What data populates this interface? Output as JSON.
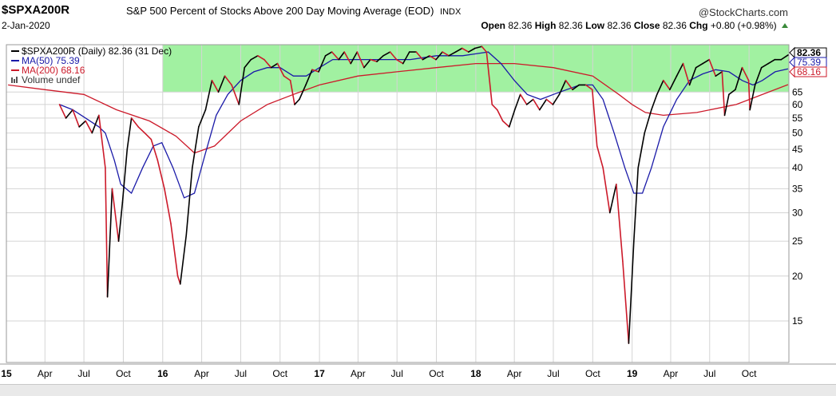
{
  "header": {
    "symbol": "$SPXA200R",
    "description": "S&P 500 Percent of Stocks Above 200 Day Moving Average (EOD)",
    "exchange": "INDX",
    "brand": "@StockCharts.com",
    "date": "2-Jan-2020",
    "open_label": "Open",
    "open": "82.36",
    "high_label": "High",
    "high": "82.36",
    "low_label": "Low",
    "low": "82.36",
    "close_label": "Close",
    "close": "82.36",
    "chg_label": "Chg",
    "chg": "+0.80 (+0.98%)"
  },
  "chart_data": {
    "type": "line",
    "y_scale": "log",
    "ylim": [
      11.5,
      88
    ],
    "x_range": [
      "2015-01-01",
      "2020-01-02"
    ],
    "grid": true,
    "legend_position": "top-left",
    "highlight_band": {
      "y": [
        65,
        88
      ],
      "color": "#90ee90"
    },
    "legend": [
      {
        "key": "price",
        "text": "$SPXA200R (Daily) 82.36 (31 Dec)",
        "color": "#000000"
      },
      {
        "key": "ma50",
        "text": "MA(50) 75.39",
        "color": "#1a1aa8"
      },
      {
        "key": "ma200",
        "text": "MA(200) 68.16",
        "color": "#cc1a2a"
      },
      {
        "key": "volume",
        "text": "Volume undef",
        "color": "#555555"
      }
    ],
    "right_labels": [
      {
        "value": 82.36,
        "text": "82.36",
        "color": "#000000",
        "bold": true
      },
      {
        "value": 75.39,
        "text": "75.39",
        "color": "#1a1aa8",
        "bold": false
      },
      {
        "value": 68.16,
        "text": "68.16",
        "color": "#cc1a2a",
        "bold": false
      }
    ],
    "y_ticks": [
      {
        "value": 15,
        "label": "15"
      },
      {
        "value": 20,
        "label": "20"
      },
      {
        "value": 25,
        "label": "25"
      },
      {
        "value": 30,
        "label": "30"
      },
      {
        "value": 35,
        "label": "35"
      },
      {
        "value": 40,
        "label": "40"
      },
      {
        "value": 45,
        "label": "45"
      },
      {
        "value": 50,
        "label": "50"
      },
      {
        "value": 55,
        "label": "55"
      },
      {
        "value": 60,
        "label": "60"
      },
      {
        "value": 65,
        "label": "65"
      }
    ],
    "x_ticks": [
      {
        "date": "2015-01-01",
        "label": "15",
        "bold": true
      },
      {
        "date": "2015-04-01",
        "label": "Apr"
      },
      {
        "date": "2015-07-01",
        "label": "Jul"
      },
      {
        "date": "2015-10-01",
        "label": "Oct"
      },
      {
        "date": "2016-01-01",
        "label": "16",
        "bold": true
      },
      {
        "date": "2016-04-01",
        "label": "Apr"
      },
      {
        "date": "2016-07-01",
        "label": "Jul"
      },
      {
        "date": "2016-10-01",
        "label": "Oct"
      },
      {
        "date": "2017-01-01",
        "label": "17",
        "bold": true
      },
      {
        "date": "2017-04-01",
        "label": "Apr"
      },
      {
        "date": "2017-07-01",
        "label": "Jul"
      },
      {
        "date": "2017-10-01",
        "label": "Oct"
      },
      {
        "date": "2018-01-01",
        "label": "18",
        "bold": true
      },
      {
        "date": "2018-04-01",
        "label": "Apr"
      },
      {
        "date": "2018-07-01",
        "label": "Jul"
      },
      {
        "date": "2018-10-01",
        "label": "Oct"
      },
      {
        "date": "2019-01-01",
        "label": "19",
        "bold": true
      },
      {
        "date": "2019-04-01",
        "label": "Apr"
      },
      {
        "date": "2019-07-01",
        "label": "Jul"
      },
      {
        "date": "2019-10-01",
        "label": "Oct"
      }
    ],
    "series": [
      {
        "key": "price",
        "name": "$SPXA200R",
        "color_up": "#000000",
        "color_down": "#cc1a2a",
        "x": [
          "2015-05-05",
          "2015-05-20",
          "2015-06-05",
          "2015-06-20",
          "2015-07-05",
          "2015-07-20",
          "2015-08-05",
          "2015-08-20",
          "2015-08-25",
          "2015-09-05",
          "2015-09-20",
          "2015-09-29",
          "2015-10-10",
          "2015-10-20",
          "2015-11-05",
          "2015-11-20",
          "2015-12-05",
          "2015-12-20",
          "2016-01-05",
          "2016-01-20",
          "2016-02-05",
          "2016-02-11",
          "2016-02-25",
          "2016-03-10",
          "2016-03-25",
          "2016-04-10",
          "2016-04-25",
          "2016-05-10",
          "2016-05-25",
          "2016-06-10",
          "2016-06-27",
          "2016-07-10",
          "2016-07-25",
          "2016-08-10",
          "2016-08-25",
          "2016-09-10",
          "2016-09-25",
          "2016-10-10",
          "2016-10-25",
          "2016-11-04",
          "2016-11-15",
          "2016-11-30",
          "2016-12-15",
          "2016-12-30",
          "2017-01-15",
          "2017-01-30",
          "2017-02-15",
          "2017-02-28",
          "2017-03-15",
          "2017-03-30",
          "2017-04-15",
          "2017-04-30",
          "2017-05-15",
          "2017-05-30",
          "2017-06-15",
          "2017-06-30",
          "2017-07-15",
          "2017-07-30",
          "2017-08-15",
          "2017-08-30",
          "2017-09-15",
          "2017-09-30",
          "2017-10-15",
          "2017-10-30",
          "2017-11-15",
          "2017-11-30",
          "2017-12-15",
          "2017-12-30",
          "2018-01-15",
          "2018-01-26",
          "2018-02-08",
          "2018-02-20",
          "2018-03-05",
          "2018-03-20",
          "2018-04-02",
          "2018-04-15",
          "2018-04-30",
          "2018-05-15",
          "2018-05-30",
          "2018-06-15",
          "2018-06-30",
          "2018-07-15",
          "2018-07-30",
          "2018-08-15",
          "2018-08-30",
          "2018-09-15",
          "2018-09-30",
          "2018-10-11",
          "2018-10-25",
          "2018-11-10",
          "2018-11-25",
          "2018-12-10",
          "2018-12-24",
          "2019-01-05",
          "2019-01-15",
          "2019-01-30",
          "2019-02-15",
          "2019-02-28",
          "2019-03-15",
          "2019-03-30",
          "2019-04-15",
          "2019-04-30",
          "2019-05-15",
          "2019-05-30",
          "2019-06-15",
          "2019-06-30",
          "2019-07-15",
          "2019-07-30",
          "2019-08-05",
          "2019-08-15",
          "2019-08-30",
          "2019-09-15",
          "2019-09-30",
          "2019-10-03",
          "2019-10-15",
          "2019-10-30",
          "2019-11-15",
          "2019-11-30",
          "2019-12-15",
          "2019-12-31"
        ],
        "values": [
          60,
          55,
          58,
          52,
          54,
          50,
          56,
          40,
          17.5,
          35,
          25,
          32,
          45,
          55,
          52,
          50,
          48,
          42,
          35,
          28,
          20,
          19,
          26,
          40,
          52,
          58,
          70,
          65,
          72,
          68,
          60,
          76,
          80,
          82,
          80,
          76,
          78,
          72,
          70,
          60,
          62,
          68,
          75,
          74,
          82,
          84,
          80,
          84,
          78,
          84,
          76,
          80,
          79,
          82,
          84,
          80,
          78,
          84,
          84,
          80,
          82,
          80,
          84,
          82,
          84,
          86,
          84,
          86,
          87,
          84,
          60,
          58,
          54,
          52,
          58,
          64,
          60,
          62,
          58,
          62,
          60,
          64,
          70,
          66,
          68,
          68,
          66,
          46,
          40,
          30,
          36,
          22,
          13,
          25,
          40,
          50,
          58,
          64,
          70,
          66,
          72,
          78,
          68,
          76,
          78,
          80,
          72,
          74,
          56,
          64,
          66,
          76,
          70,
          58,
          68,
          76,
          78,
          80,
          80,
          82.36
        ]
      },
      {
        "key": "ma50",
        "name": "MA(50)",
        "color": "#1a1aa8",
        "x": [
          "2015-05-05",
          "2015-06-05",
          "2015-07-05",
          "2015-08-05",
          "2015-08-20",
          "2015-09-10",
          "2015-09-25",
          "2015-10-20",
          "2015-11-15",
          "2015-12-10",
          "2015-12-30",
          "2016-01-25",
          "2016-02-20",
          "2016-03-15",
          "2016-04-10",
          "2016-05-05",
          "2016-06-01",
          "2016-07-01",
          "2016-08-01",
          "2016-09-01",
          "2016-10-01",
          "2016-11-01",
          "2016-12-01",
          "2017-01-01",
          "2017-02-01",
          "2017-03-01",
          "2017-04-01",
          "2017-05-01",
          "2017-06-01",
          "2017-07-01",
          "2017-08-01",
          "2017-09-01",
          "2017-10-01",
          "2017-11-01",
          "2017-12-01",
          "2018-01-01",
          "2018-01-30",
          "2018-03-01",
          "2018-04-01",
          "2018-05-01",
          "2018-06-01",
          "2018-07-01",
          "2018-08-01",
          "2018-09-01",
          "2018-10-01",
          "2018-10-25",
          "2018-11-20",
          "2018-12-15",
          "2019-01-05",
          "2019-01-25",
          "2019-02-15",
          "2019-03-15",
          "2019-04-15",
          "2019-05-15",
          "2019-06-15",
          "2019-07-15",
          "2019-08-15",
          "2019-09-15",
          "2019-10-10",
          "2019-11-01",
          "2019-12-01",
          "2019-12-31"
        ],
        "values": [
          60,
          58,
          55,
          52,
          50,
          42,
          36,
          34,
          40,
          46,
          47,
          40,
          33,
          34,
          44,
          56,
          64,
          70,
          74,
          76,
          76,
          72,
          72,
          76,
          80,
          80,
          80,
          80,
          80,
          80,
          80,
          81,
          82,
          82,
          82,
          83,
          84,
          78,
          70,
          64,
          62,
          64,
          66,
          68,
          68,
          62,
          50,
          40,
          34,
          34,
          40,
          52,
          62,
          70,
          73,
          75,
          74,
          70,
          68,
          70,
          74,
          75.39
        ]
      },
      {
        "key": "ma200",
        "name": "MA(200)",
        "color": "#cc1a2a",
        "x": [
          "2015-01-05",
          "2015-04-01",
          "2015-07-01",
          "2015-09-15",
          "2015-12-01",
          "2016-02-01",
          "2016-03-15",
          "2016-05-01",
          "2016-07-01",
          "2016-09-01",
          "2016-11-01",
          "2017-01-01",
          "2017-04-01",
          "2017-07-01",
          "2017-10-01",
          "2018-01-01",
          "2018-04-01",
          "2018-07-01",
          "2018-10-01",
          "2018-12-01",
          "2019-01-01",
          "2019-02-01",
          "2019-03-15",
          "2019-06-01",
          "2019-09-01",
          "2019-12-31"
        ],
        "values": [
          68,
          66,
          64,
          58,
          54,
          49,
          44,
          46,
          54,
          60,
          64,
          68,
          72,
          74,
          76,
          78,
          78,
          76,
          72,
          64,
          60,
          57,
          56,
          57,
          60,
          68.16
        ]
      }
    ]
  }
}
